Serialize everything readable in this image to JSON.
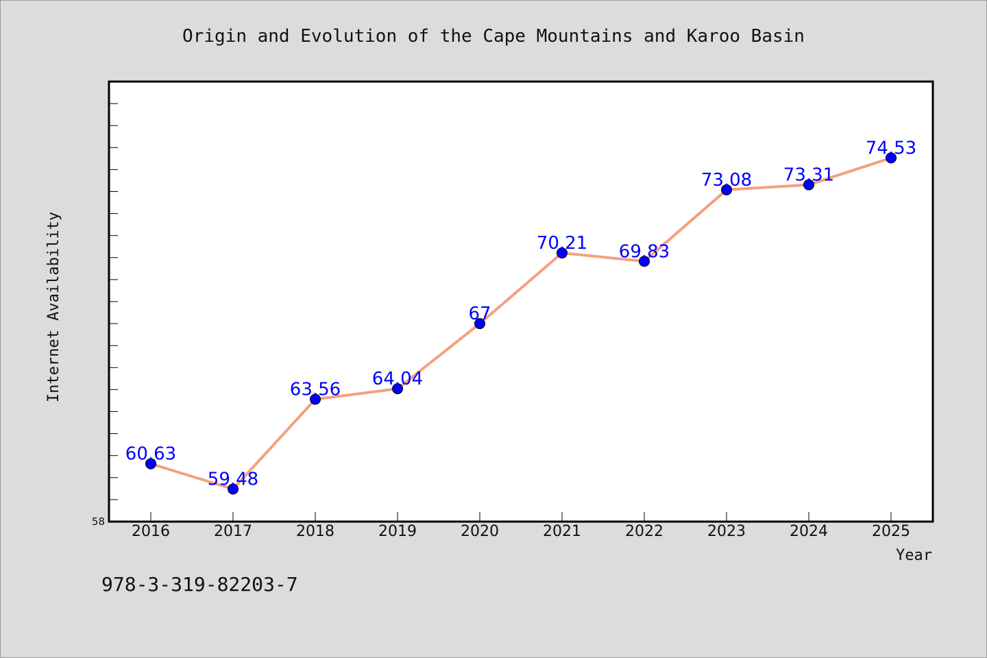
{
  "chart_data": {
    "type": "line",
    "title": "Origin and Evolution of the Cape Mountains and Karoo Basin",
    "xlabel": "Year",
    "ylabel": "Internet Availability",
    "x": [
      "2016",
      "2017",
      "2018",
      "2019",
      "2020",
      "2021",
      "2022",
      "2023",
      "2024",
      "2025"
    ],
    "series": [
      {
        "values": [
          60.63,
          59.48,
          63.56,
          64.04,
          67,
          70.21,
          69.83,
          73.08,
          73.31,
          74.53
        ],
        "labels": [
          "60.63",
          "59.48",
          "63.56",
          "64.04",
          "67",
          "70.21",
          "69.83",
          "73.08",
          "73.31",
          "74.53"
        ],
        "line_color": "#f4a07d",
        "marker_color": "#0000ff"
      }
    ],
    "ylim": [
      58,
      78
    ],
    "y_tick_labels": [
      "58"
    ],
    "grid": false,
    "legend": "none"
  },
  "footnote": "978-3-319-82203-7",
  "colors": {
    "background": "#dcdcdc",
    "plot_background": "#ffffff",
    "label_color": "#0000ff"
  }
}
